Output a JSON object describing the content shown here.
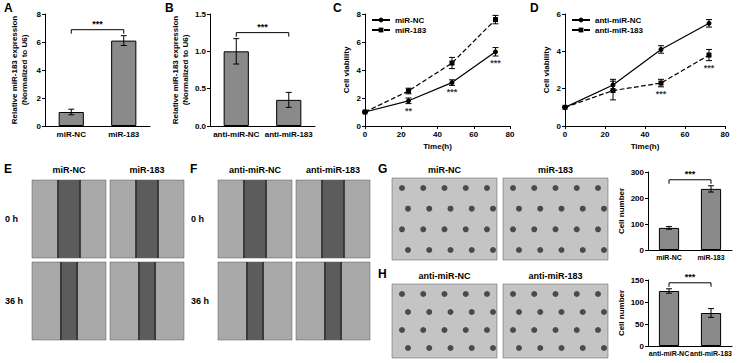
{
  "chart_data": [
    {
      "title": "A",
      "type": "bar",
      "categories": [
        "miR-NC",
        "miR-183"
      ],
      "values": [
        1.0,
        6.1
      ],
      "errors": [
        0.2,
        0.35
      ],
      "ylabel": "Relative miR-183 expression\n(Normalized to U6)",
      "ylim": [
        0,
        8
      ],
      "yticks": [
        0,
        2,
        4,
        6,
        8
      ],
      "color": "#8a8a8a",
      "grid": false,
      "annotations": [
        "***"
      ]
    },
    {
      "title": "B",
      "type": "bar",
      "categories": [
        "anti-miR-NC",
        "anti-miR-183"
      ],
      "values": [
        1.0,
        0.35
      ],
      "errors": [
        0.17,
        0.1
      ],
      "ylabel": "Relative miR-183 expression\n(Normalized to U6)",
      "ylim": [
        0,
        1.5
      ],
      "yticks": [
        {
          "value": 0,
          "label": "0.0"
        },
        0.5,
        {
          "value": 1,
          "label": "1.0"
        },
        1.5
      ],
      "color": "#8a8a8a",
      "grid": false,
      "annotations": [
        "***"
      ]
    },
    {
      "title": "C",
      "type": "line",
      "x": [
        0,
        24,
        48,
        72
      ],
      "xlabel": "Time(h)",
      "ylabel": "Cell viability",
      "xlim": [
        0,
        80
      ],
      "xticks": [
        0,
        20,
        40,
        60,
        80
      ],
      "ylim": [
        0,
        8
      ],
      "yticks": [
        0,
        2,
        4,
        6,
        8
      ],
      "legend": "upper left",
      "grid": false,
      "series": [
        {
          "name": "miR-NC",
          "color": "#000000",
          "line_style": "solid",
          "marker": "circle",
          "values": [
            1.0,
            1.8,
            3.1,
            5.3
          ],
          "errors": [
            0,
            0.2,
            0.2,
            0.3
          ]
        },
        {
          "name": "miR-183",
          "color": "#000000",
          "line_style": "dashed",
          "marker": "rect",
          "values": [
            1.0,
            2.5,
            4.5,
            7.6
          ],
          "errors": [
            0,
            0.2,
            0.4,
            0.3
          ]
        }
      ],
      "annotations": [
        {
          "x": 24,
          "label": "**"
        },
        {
          "x": 48,
          "label": "***"
        },
        {
          "x": 72,
          "label": "***"
        }
      ]
    },
    {
      "title": "D",
      "type": "line",
      "x": [
        0,
        24,
        48,
        72
      ],
      "xlabel": "Time(h)",
      "ylabel": "Cell viability",
      "xlim": [
        0,
        80
      ],
      "xticks": [
        0,
        20,
        40,
        60,
        80
      ],
      "ylim": [
        0,
        6
      ],
      "yticks": [
        0,
        2,
        4,
        6
      ],
      "legend": "upper left",
      "grid": false,
      "series": [
        {
          "name": "anti-miR-NC",
          "color": "#000000",
          "line_style": "solid",
          "marker": "circle",
          "values": [
            1.0,
            2.2,
            4.1,
            5.5
          ],
          "errors": [
            0,
            0.3,
            0.2,
            0.2
          ]
        },
        {
          "name": "anti-miR-183",
          "color": "#000000",
          "line_style": "dashed",
          "marker": "rect",
          "values": [
            1.0,
            1.9,
            2.3,
            3.8
          ],
          "errors": [
            0,
            0.5,
            0.2,
            0.3
          ]
        }
      ],
      "annotations": [
        {
          "x": 48,
          "label": "***"
        },
        {
          "x": 72,
          "label": "***"
        }
      ]
    },
    {
      "type": "bar",
      "categories": [
        "miR-NC",
        "miR-183"
      ],
      "values": [
        85,
        235
      ],
      "errors": [
        5,
        12
      ],
      "ylabel": "Cell number",
      "ylim": [
        0,
        300
      ],
      "yticks": [
        0,
        100,
        200,
        300
      ],
      "color": "#8a8a8a",
      "grid": false,
      "annotations": [
        "***"
      ]
    },
    {
      "type": "bar",
      "categories": [
        "anti-miR-NC",
        "anti-miR-183"
      ],
      "values": [
        125,
        75
      ],
      "errors": [
        5,
        10
      ],
      "ylabel": "Cell number",
      "ylim": [
        0,
        150
      ],
      "yticks": [
        0,
        50,
        100,
        150
      ],
      "color": "#8a8a8a",
      "grid": false,
      "annotations": [
        "***"
      ]
    }
  ],
  "images": [
    {
      "title": "E",
      "columns": [
        "miR-NC",
        "miR-183"
      ],
      "rows": [
        "0 h",
        "36 h"
      ]
    },
    {
      "title": "F",
      "columns": [
        "anti-miR-NC",
        "anti-miR-183"
      ],
      "rows": [
        "0 h",
        "36 h"
      ]
    },
    {
      "title": "G",
      "columns": [
        "miR-NC",
        "miR-183"
      ]
    },
    {
      "title": "H",
      "columns": [
        "anti-miR-NC",
        "anti-miR-183"
      ]
    }
  ]
}
